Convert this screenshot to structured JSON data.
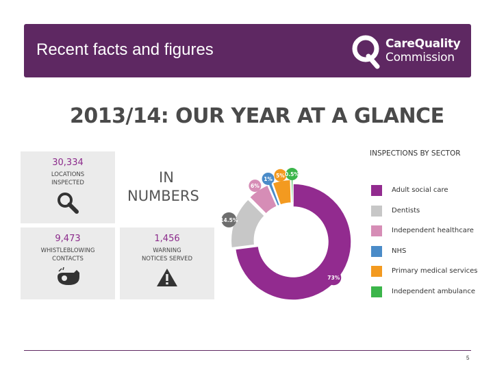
{
  "header": {
    "title": "Recent facts and figures",
    "logo_line1": "CareQuality",
    "logo_line2": "Commission"
  },
  "infographic": {
    "title": "2013/14: OUR YEAR AT A GLANCE",
    "in_numbers_line1": "IN",
    "in_numbers_line2": "NUMBERS",
    "stats": [
      {
        "value": "30,334",
        "label1": "LOCATIONS",
        "label2": "INSPECTED",
        "icon": "magnifier-icon"
      },
      {
        "value": "9,473",
        "label1": "WHISTLEBLOWING",
        "label2": "CONTACTS",
        "icon": "whistle-icon"
      },
      {
        "value": "1,456",
        "label1": "WARNING",
        "label2": "NOTICES SERVED",
        "icon": "warning-icon"
      }
    ]
  },
  "chart_data": {
    "type": "pie",
    "title": "INSPECTIONS BY SECTOR",
    "categories": [
      "Adult social care",
      "Dentists",
      "Independent healthcare",
      "NHS",
      "Primary medical services",
      "Independent ambulance"
    ],
    "values": [
      73,
      14.5,
      6,
      1,
      5,
      0.5
    ],
    "data_labels": [
      "73%",
      "14.5%",
      "6%",
      "1%",
      "5%",
      "0.5%"
    ],
    "colors": [
      "#922b8f",
      "#c7c7c7",
      "#d68db6",
      "#4a8bc8",
      "#f39a20",
      "#3bb54a"
    ],
    "donut": true,
    "legend_position": "right"
  },
  "footer": {
    "page_number": "5"
  }
}
